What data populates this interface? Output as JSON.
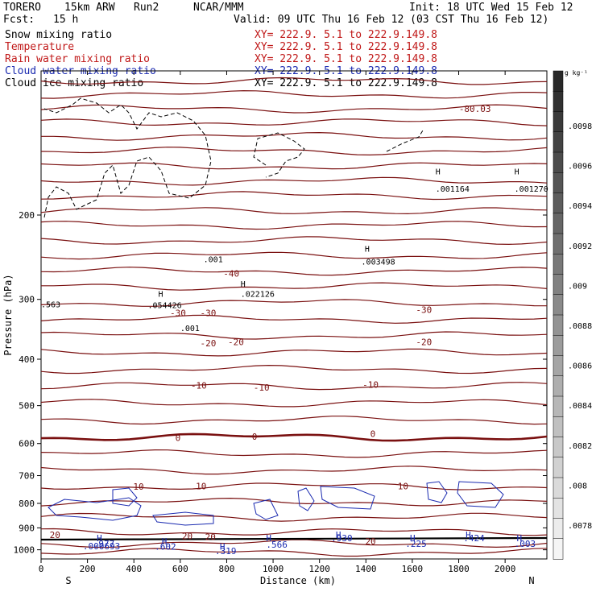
{
  "header": {
    "project": "TORERO",
    "grid": "15km ARW",
    "run": "Run2",
    "org": "NCAR/MMM",
    "init": "Init: 18 UTC Wed 15 Feb 12",
    "fcst_label": "Fcst:",
    "fcst_value": "15 h",
    "valid": "Valid: 09 UTC Thu 16 Feb 12 (03 CST Thu 16 Feb 12)"
  },
  "legend": [
    {
      "label": "Snow mixing ratio",
      "xy": "XY= 222.9. 5.1 to 222.9.149.8",
      "color": "#000000"
    },
    {
      "label": "Temperature",
      "xy": "XY= 222.9. 5.1 to 222.9.149.8",
      "color": "#c01818"
    },
    {
      "label": "Rain water mixing ratio",
      "xy": "XY= 222.9. 5.1 to 222.9.149.8",
      "color": "#c01818"
    },
    {
      "label": "Cloud water mixing ratio",
      "xy": "XY= 222.9. 5.1 to 222.9.149.8",
      "color": "#1a2ab0"
    },
    {
      "label": "Cloud ice mixing ratio",
      "xy": "XY= 222.9. 5.1 to 222.9.149.8",
      "color": "#000000"
    }
  ],
  "chart_data": {
    "type": "contour",
    "xlabel": "Distance (km)",
    "ylabel": "Pressure (hPa)",
    "xlim": [
      0,
      2180
    ],
    "ylim": [
      1045,
      100
    ],
    "xticks": [
      0,
      200,
      400,
      600,
      800,
      1000,
      1200,
      1400,
      1600,
      1800,
      2000
    ],
    "yticks": [
      200,
      300,
      400,
      500,
      600,
      700,
      800,
      900,
      1000
    ],
    "yscale": "log",
    "left_end": "S",
    "right_end": "N",
    "colorbar": {
      "unit": "g kg⁻¹",
      "ticks": [
        ".0098",
        ".0096",
        ".0094",
        ".0092",
        ".009",
        ".0088",
        ".0086",
        ".0084",
        ".0082",
        ".008",
        ".0078"
      ]
    },
    "temperature_contours": [
      {
        "label": "-80.03",
        "x": 1870,
        "p": 120
      },
      {
        "label": "-40",
        "x": 820,
        "p": 265
      },
      {
        "label": "-30",
        "x": 590,
        "p": 320
      },
      {
        "label": "-30",
        "x": 720,
        "p": 320
      },
      {
        "label": "-30",
        "x": 1650,
        "p": 315
      },
      {
        "label": "-20",
        "x": 720,
        "p": 370
      },
      {
        "label": "-20",
        "x": 840,
        "p": 368
      },
      {
        "label": "-20",
        "x": 1650,
        "p": 368
      },
      {
        "label": "-10",
        "x": 680,
        "p": 454
      },
      {
        "label": "-10",
        "x": 950,
        "p": 458
      },
      {
        "label": "-10",
        "x": 1420,
        "p": 452
      },
      {
        "label": "0",
        "x": 590,
        "p": 584
      },
      {
        "label": "0",
        "x": 920,
        "p": 580
      },
      {
        "label": "0",
        "x": 1430,
        "p": 572
      },
      {
        "label": "10",
        "x": 420,
        "p": 737
      },
      {
        "label": "10",
        "x": 690,
        "p": 736
      },
      {
        "label": "10",
        "x": 1560,
        "p": 736
      },
      {
        "label": "20",
        "x": 60,
        "p": 930
      },
      {
        "label": "20",
        "x": 630,
        "p": 935
      },
      {
        "label": "20",
        "x": 730,
        "p": 940
      },
      {
        "label": "20",
        "x": 1420,
        "p": 960
      }
    ],
    "extrema_labels": [
      {
        "label": "H",
        "x": 1395,
        "p": 235
      },
      {
        "label": ".003498",
        "x": 1380,
        "p": 250
      },
      {
        "label": "H",
        "x": 860,
        "p": 278
      },
      {
        "label": ".022126",
        "x": 860,
        "p": 292
      },
      {
        "label": "H",
        "x": 505,
        "p": 292
      },
      {
        "label": ".054426",
        "x": 460,
        "p": 308
      },
      {
        "label": ".001",
        "x": 700,
        "p": 247
      },
      {
        "label": ".001",
        "x": 600,
        "p": 344
      },
      {
        "label": ".563",
        "x": 0,
        "p": 307
      },
      {
        "label": "H",
        "x": 1700,
        "p": 162
      },
      {
        "label": ".001164",
        "x": 1700,
        "p": 176
      },
      {
        "label": "H",
        "x": 2040,
        "p": 162
      },
      {
        "label": ".001270",
        "x": 2040,
        "p": 176
      }
    ],
    "cloud_water_labels": [
      {
        "label": "H",
        "x": 240,
        "p": 945
      },
      {
        "label": ".977",
        "x": 225,
        "p": 970
      },
      {
        "label": ".000693",
        "x": 180,
        "p": 983
      },
      {
        "label": "H",
        "x": 520,
        "p": 960
      },
      {
        "label": ".602",
        "x": 490,
        "p": 985
      },
      {
        "label": "H",
        "x": 770,
        "p": 985
      },
      {
        "label": ".319",
        "x": 750,
        "p": 1005
      },
      {
        "label": "H",
        "x": 970,
        "p": 945
      },
      {
        "label": ".566",
        "x": 970,
        "p": 975
      },
      {
        "label": "H",
        "x": 1270,
        "p": 930
      },
      {
        "label": ".930",
        "x": 1250,
        "p": 945
      },
      {
        "label": "H",
        "x": 1590,
        "p": 945
      },
      {
        "label": ".225",
        "x": 1570,
        "p": 970
      },
      {
        "label": "H",
        "x": 1830,
        "p": 930
      },
      {
        "label": ".424",
        "x": 1820,
        "p": 945
      },
      {
        "label": "H",
        "x": 2050,
        "p": 945
      },
      {
        "label": ".003",
        "x": 2040,
        "p": 970
      }
    ]
  }
}
